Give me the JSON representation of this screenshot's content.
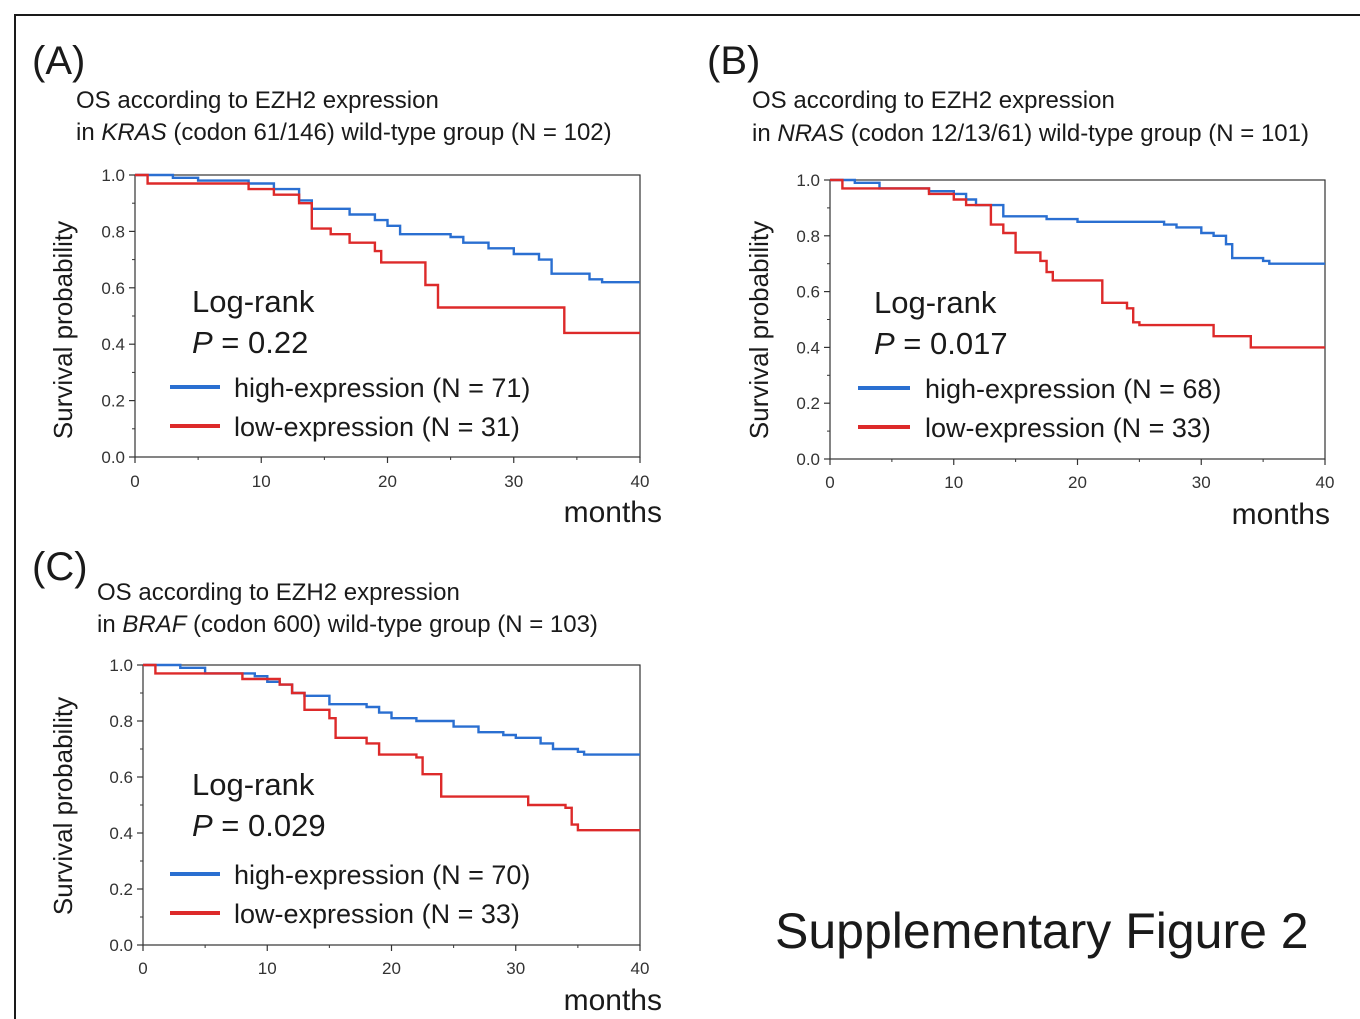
{
  "figure_caption": "Supplementary Figure 2",
  "colors": {
    "high": "#2a6fd1",
    "low": "#dd2a2a"
  },
  "panels": [
    {
      "letter": "(A)",
      "title_line1": "OS according to EZH2 expression",
      "title_pre": "in ",
      "title_gene": "KRAS",
      "title_post": " (codon 61/146) wild-type group (N = 102)",
      "logrank_label": "Log-rank",
      "p_symbol": "P",
      "p_value": " = 0.22",
      "legend_high": "high-expression  (N = 71)",
      "legend_low": "low-expression  (N = 31)"
    },
    {
      "letter": "(B)",
      "title_line1": "OS according to EZH2 expression",
      "title_pre": "in ",
      "title_gene": "NRAS",
      "title_post": " (codon 12/13/61) wild-type group (N = 101)",
      "logrank_label": "Log-rank",
      "p_symbol": "P",
      "p_value": " = 0.017",
      "legend_high": "high-expression  (N = 68)",
      "legend_low": "low-expression  (N = 33)"
    },
    {
      "letter": "(C)",
      "title_line1": "OS according to EZH2 expression",
      "title_pre": "in ",
      "title_gene": "BRAF",
      "title_post": " (codon 600) wild-type group (N = 103)",
      "logrank_label": "Log-rank",
      "p_symbol": "P",
      "p_value": " = 0.029",
      "legend_high": "high-expression  (N = 70)",
      "legend_low": "low-expression  (N = 33)"
    }
  ],
  "chart_data": [
    {
      "type": "line",
      "step": true,
      "xlabel": "months",
      "ylabel": "Survival probability",
      "xlim": [
        0,
        40
      ],
      "ylim": [
        0,
        1
      ],
      "x_ticks": [
        "0",
        "10",
        "20",
        "30",
        "40"
      ],
      "y_ticks": [
        "0.0",
        "0.2",
        "0.4",
        "0.6",
        "0.8",
        "1.0"
      ],
      "series": [
        {
          "name": "high-expression  (N = 71)",
          "color_key": "high",
          "points": [
            [
              0,
              1.0
            ],
            [
              3,
              0.99
            ],
            [
              5,
              0.98
            ],
            [
              9,
              0.97
            ],
            [
              11,
              0.95
            ],
            [
              13,
              0.91
            ],
            [
              14,
              0.88
            ],
            [
              17,
              0.86
            ],
            [
              19,
              0.84
            ],
            [
              20,
              0.82
            ],
            [
              21,
              0.79
            ],
            [
              25,
              0.78
            ],
            [
              26,
              0.76
            ],
            [
              28,
              0.74
            ],
            [
              30,
              0.72
            ],
            [
              32,
              0.7
            ],
            [
              33,
              0.65
            ],
            [
              36,
              0.63
            ],
            [
              37,
              0.62
            ],
            [
              40,
              0.62
            ]
          ]
        },
        {
          "name": "low-expression  (N = 31)",
          "color_key": "low",
          "points": [
            [
              0,
              1.0
            ],
            [
              1,
              0.97
            ],
            [
              9,
              0.95
            ],
            [
              11,
              0.93
            ],
            [
              13,
              0.9
            ],
            [
              14,
              0.81
            ],
            [
              15.5,
              0.79
            ],
            [
              17,
              0.76
            ],
            [
              19,
              0.73
            ],
            [
              19.5,
              0.69
            ],
            [
              22,
              0.69
            ],
            [
              23,
              0.61
            ],
            [
              24,
              0.53
            ],
            [
              34,
              0.44
            ],
            [
              40,
              0.44
            ]
          ]
        }
      ]
    },
    {
      "type": "line",
      "step": true,
      "xlabel": "months",
      "ylabel": "Survival probability",
      "xlim": [
        0,
        40
      ],
      "ylim": [
        0,
        1
      ],
      "x_ticks": [
        "0",
        "10",
        "20",
        "30",
        "40"
      ],
      "y_ticks": [
        "0.0",
        "0.2",
        "0.4",
        "0.6",
        "0.8",
        "1.0"
      ],
      "series": [
        {
          "name": "high-expression  (N = 68)",
          "color_key": "high",
          "points": [
            [
              0,
              1.0
            ],
            [
              2,
              0.99
            ],
            [
              4,
              0.97
            ],
            [
              8,
              0.96
            ],
            [
              10,
              0.95
            ],
            [
              11,
              0.93
            ],
            [
              11.8,
              0.91
            ],
            [
              14,
              0.87
            ],
            [
              17.5,
              0.86
            ],
            [
              20,
              0.85
            ],
            [
              26,
              0.85
            ],
            [
              27,
              0.84
            ],
            [
              28,
              0.83
            ],
            [
              30,
              0.81
            ],
            [
              31,
              0.8
            ],
            [
              32,
              0.77
            ],
            [
              32.5,
              0.72
            ],
            [
              35,
              0.71
            ],
            [
              35.5,
              0.7
            ],
            [
              40,
              0.7
            ]
          ]
        },
        {
          "name": "low-expression  (N = 33)",
          "color_key": "low",
          "points": [
            [
              0,
              1.0
            ],
            [
              1,
              0.97
            ],
            [
              8,
              0.95
            ],
            [
              10,
              0.93
            ],
            [
              11,
              0.91
            ],
            [
              13,
              0.84
            ],
            [
              14,
              0.81
            ],
            [
              15,
              0.74
            ],
            [
              17,
              0.71
            ],
            [
              17.5,
              0.67
            ],
            [
              18,
              0.64
            ],
            [
              22,
              0.56
            ],
            [
              24,
              0.54
            ],
            [
              24.5,
              0.49
            ],
            [
              25,
              0.48
            ],
            [
              31,
              0.44
            ],
            [
              34,
              0.4
            ],
            [
              40,
              0.4
            ]
          ]
        }
      ]
    },
    {
      "type": "line",
      "step": true,
      "xlabel": "months",
      "ylabel": "Survival probability",
      "xlim": [
        0,
        40
      ],
      "ylim": [
        0,
        1
      ],
      "x_ticks": [
        "0",
        "10",
        "20",
        "30",
        "40"
      ],
      "y_ticks": [
        "0.0",
        "0.2",
        "0.4",
        "0.6",
        "0.8",
        "1.0"
      ],
      "series": [
        {
          "name": "high-expression  (N = 70)",
          "color_key": "high",
          "points": [
            [
              0,
              1.0
            ],
            [
              3,
              0.99
            ],
            [
              5,
              0.97
            ],
            [
              9,
              0.96
            ],
            [
              10,
              0.94
            ],
            [
              11,
              0.93
            ],
            [
              12,
              0.9
            ],
            [
              13,
              0.89
            ],
            [
              15,
              0.86
            ],
            [
              18,
              0.85
            ],
            [
              19,
              0.83
            ],
            [
              20,
              0.81
            ],
            [
              22,
              0.8
            ],
            [
              25,
              0.78
            ],
            [
              27,
              0.76
            ],
            [
              29,
              0.75
            ],
            [
              30,
              0.74
            ],
            [
              32,
              0.72
            ],
            [
              33,
              0.7
            ],
            [
              35,
              0.69
            ],
            [
              35.5,
              0.68
            ],
            [
              40,
              0.68
            ]
          ]
        },
        {
          "name": "low-expression  (N = 33)",
          "color_key": "low",
          "points": [
            [
              0,
              1.0
            ],
            [
              1,
              0.97
            ],
            [
              8,
              0.95
            ],
            [
              11,
              0.93
            ],
            [
              12,
              0.9
            ],
            [
              13,
              0.84
            ],
            [
              15,
              0.81
            ],
            [
              15.5,
              0.74
            ],
            [
              18,
              0.72
            ],
            [
              19,
              0.68
            ],
            [
              22,
              0.67
            ],
            [
              22.5,
              0.61
            ],
            [
              24,
              0.53
            ],
            [
              31,
              0.5
            ],
            [
              34,
              0.49
            ],
            [
              34.5,
              0.43
            ],
            [
              35,
              0.41
            ],
            [
              40,
              0.41
            ]
          ]
        }
      ]
    }
  ]
}
